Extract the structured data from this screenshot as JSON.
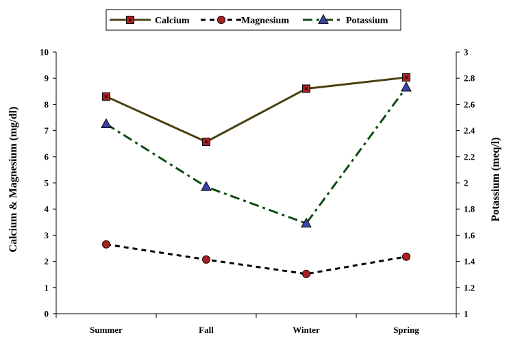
{
  "chart_data": {
    "type": "line",
    "categories": [
      "Summer",
      "Fall",
      "Winter",
      "Spring"
    ],
    "ylabel_left": "Calcium & Magnesium (mg/dl)",
    "ylabel_right": "Potassium (meq/l)",
    "ylim_left": [
      0,
      10
    ],
    "ylim_right": [
      1,
      3
    ],
    "yticks_left": [
      "0",
      "1",
      "2",
      "3",
      "4",
      "5",
      "6",
      "7",
      "8",
      "9",
      "10"
    ],
    "yticks_right": [
      "1",
      "1.2",
      "1.4",
      "1.6",
      "1.8",
      "2",
      "2.2",
      "2.4",
      "2.6",
      "2.8",
      "3"
    ],
    "grid": false,
    "legend_position": "top",
    "series": [
      {
        "name": "Calcium",
        "axis": "left",
        "values": [
          8.3,
          6.57,
          8.6,
          9.03
        ],
        "color": "#4a4010",
        "marker_color": "#b02020",
        "marker": "square",
        "line_style": "solid"
      },
      {
        "name": "Magnesium",
        "axis": "left",
        "values": [
          2.65,
          2.07,
          1.52,
          2.18
        ],
        "color": "#000000",
        "marker_color": "#b02020",
        "marker": "circle",
        "line_style": "dash"
      },
      {
        "name": "Potassium",
        "axis": "right",
        "values": [
          2.45,
          1.97,
          1.69,
          2.73
        ],
        "color": "#0e4a10",
        "marker_color": "#3a44a8",
        "marker": "triangle",
        "line_style": "dashdot"
      }
    ]
  }
}
